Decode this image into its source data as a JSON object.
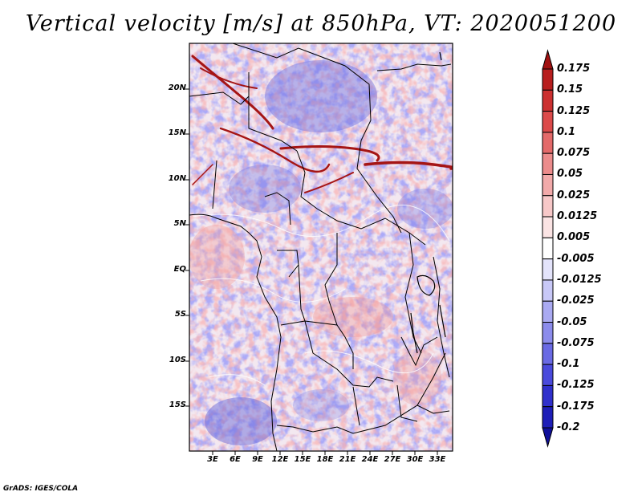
{
  "title": "Vertical velocity [m/s] at 850hPa, VT: 2020051200",
  "footer": "GrADS: IGES/COLA",
  "lat_labels": [
    "20N",
    "15N",
    "10N",
    "5N",
    "EQ",
    "5S",
    "10S",
    "15S"
  ],
  "lon_labels": [
    "3E",
    "6E",
    "9E",
    "12E",
    "15E",
    "18E",
    "21E",
    "24E",
    "27E",
    "30E",
    "33E"
  ],
  "colorbar": {
    "labels": [
      "0.175",
      "0.15",
      "0.125",
      "0.1",
      "0.075",
      "0.05",
      "0.025",
      "0.0125",
      "0.005",
      "-0.005",
      "-0.0125",
      "-0.025",
      "-0.05",
      "-0.075",
      "-0.1",
      "-0.125",
      "-0.175",
      "-0.2"
    ],
    "colors": [
      "#a01010",
      "#b81e1e",
      "#cc3030",
      "#dc4a4a",
      "#e46a6a",
      "#ec8c8c",
      "#f2aaaa",
      "#f7c8c8",
      "#fbe4e4",
      "#ffffff",
      "#e4e4fb",
      "#c8c8f7",
      "#aaaaf2",
      "#8c8cec",
      "#6a6ae4",
      "#4a4adc",
      "#3030cc",
      "#1e1eb8",
      "#10109a"
    ]
  }
}
